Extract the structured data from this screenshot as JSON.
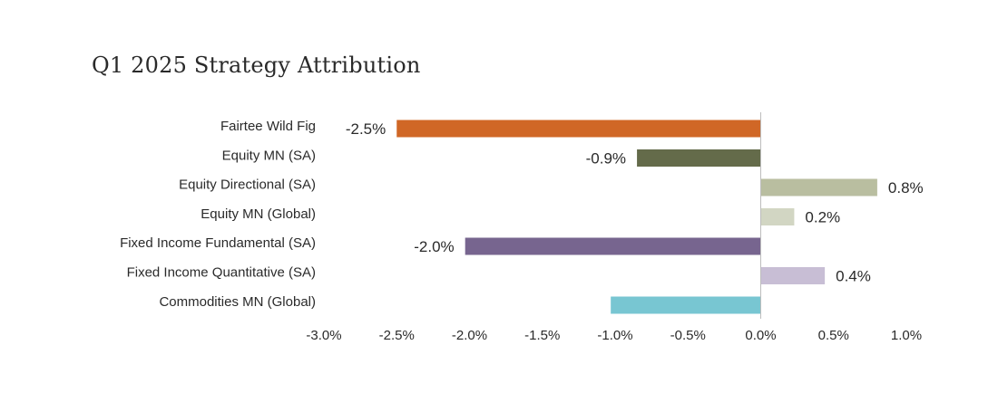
{
  "chart_data": {
    "type": "bar",
    "orientation": "horizontal",
    "title": "Q1 2025 Strategy Attribution",
    "categories": [
      "Fairtee Wild Fig",
      "Equity MN (SA)",
      "Equity Directional (SA)",
      "Equity MN (Global)",
      "Fixed Income Fundamental (SA)",
      "Fixed Income Quantitative (SA)",
      "Commodities MN (Global)"
    ],
    "values": [
      -2.5,
      -0.85,
      0.8,
      0.23,
      -2.03,
      0.44,
      -1.03
    ],
    "data_labels": [
      "-2.5%",
      "-0.9%",
      "0.8%",
      "0.2%",
      "-2.0%",
      "0.4%",
      ""
    ],
    "colors": [
      "#D06726",
      "#646B4A",
      "#B9BEA0",
      "#D2D6C3",
      "#77658F",
      "#C8BED5",
      "#78C6D2"
    ],
    "xlim": [
      -3.0,
      1.0
    ],
    "xticks": [
      -3.0,
      -2.5,
      -2.0,
      -1.5,
      -1.0,
      -0.5,
      0.0,
      0.5,
      1.0
    ],
    "xtick_labels": [
      "-3.0%",
      "-2.5%",
      "-2.0%",
      "-1.5%",
      "-1.0%",
      "-0.5%",
      "0.0%",
      "0.5%",
      "1.0%"
    ],
    "xlabel": "",
    "ylabel": "",
    "grid": false,
    "legend": "none"
  }
}
